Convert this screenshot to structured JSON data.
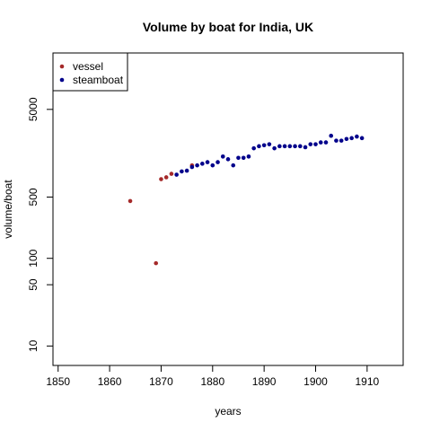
{
  "chart_data": {
    "type": "scatter",
    "title": "Volume by boat for India, UK",
    "xlabel": "years",
    "ylabel": "volume/boat",
    "xlim": [
      1849,
      1917
    ],
    "ylim": [
      6,
      22000
    ],
    "ylog": true,
    "x_ticks": [
      1850,
      1860,
      1870,
      1880,
      1890,
      1900,
      1910
    ],
    "y_ticks": [
      10,
      50,
      100,
      500,
      5000
    ],
    "legend_position": "top-left",
    "series": [
      {
        "name": "vessel",
        "color": "#a52a2a",
        "points": [
          {
            "x": 1864,
            "y": 450
          },
          {
            "x": 1869,
            "y": 88
          },
          {
            "x": 1870,
            "y": 800
          },
          {
            "x": 1871,
            "y": 840
          },
          {
            "x": 1872,
            "y": 920
          },
          {
            "x": 1876,
            "y": 1150
          }
        ]
      },
      {
        "name": "steamboat",
        "color": "#00008b",
        "points": [
          {
            "x": 1873,
            "y": 900
          },
          {
            "x": 1874,
            "y": 980
          },
          {
            "x": 1875,
            "y": 1000
          },
          {
            "x": 1876,
            "y": 1100
          },
          {
            "x": 1877,
            "y": 1150
          },
          {
            "x": 1878,
            "y": 1200
          },
          {
            "x": 1879,
            "y": 1250
          },
          {
            "x": 1880,
            "y": 1150
          },
          {
            "x": 1881,
            "y": 1250
          },
          {
            "x": 1882,
            "y": 1450
          },
          {
            "x": 1883,
            "y": 1350
          },
          {
            "x": 1884,
            "y": 1150
          },
          {
            "x": 1885,
            "y": 1400
          },
          {
            "x": 1886,
            "y": 1400
          },
          {
            "x": 1887,
            "y": 1450
          },
          {
            "x": 1888,
            "y": 1800
          },
          {
            "x": 1889,
            "y": 1900
          },
          {
            "x": 1890,
            "y": 1950
          },
          {
            "x": 1891,
            "y": 2000
          },
          {
            "x": 1892,
            "y": 1800
          },
          {
            "x": 1893,
            "y": 1900
          },
          {
            "x": 1894,
            "y": 1900
          },
          {
            "x": 1895,
            "y": 1900
          },
          {
            "x": 1896,
            "y": 1900
          },
          {
            "x": 1897,
            "y": 1900
          },
          {
            "x": 1898,
            "y": 1850
          },
          {
            "x": 1899,
            "y": 2000
          },
          {
            "x": 1900,
            "y": 2000
          },
          {
            "x": 1901,
            "y": 2100
          },
          {
            "x": 1902,
            "y": 2100
          },
          {
            "x": 1903,
            "y": 2500
          },
          {
            "x": 1904,
            "y": 2200
          },
          {
            "x": 1905,
            "y": 2200
          },
          {
            "x": 1906,
            "y": 2300
          },
          {
            "x": 1907,
            "y": 2350
          },
          {
            "x": 1908,
            "y": 2450
          },
          {
            "x": 1909,
            "y": 2350
          }
        ]
      }
    ]
  }
}
